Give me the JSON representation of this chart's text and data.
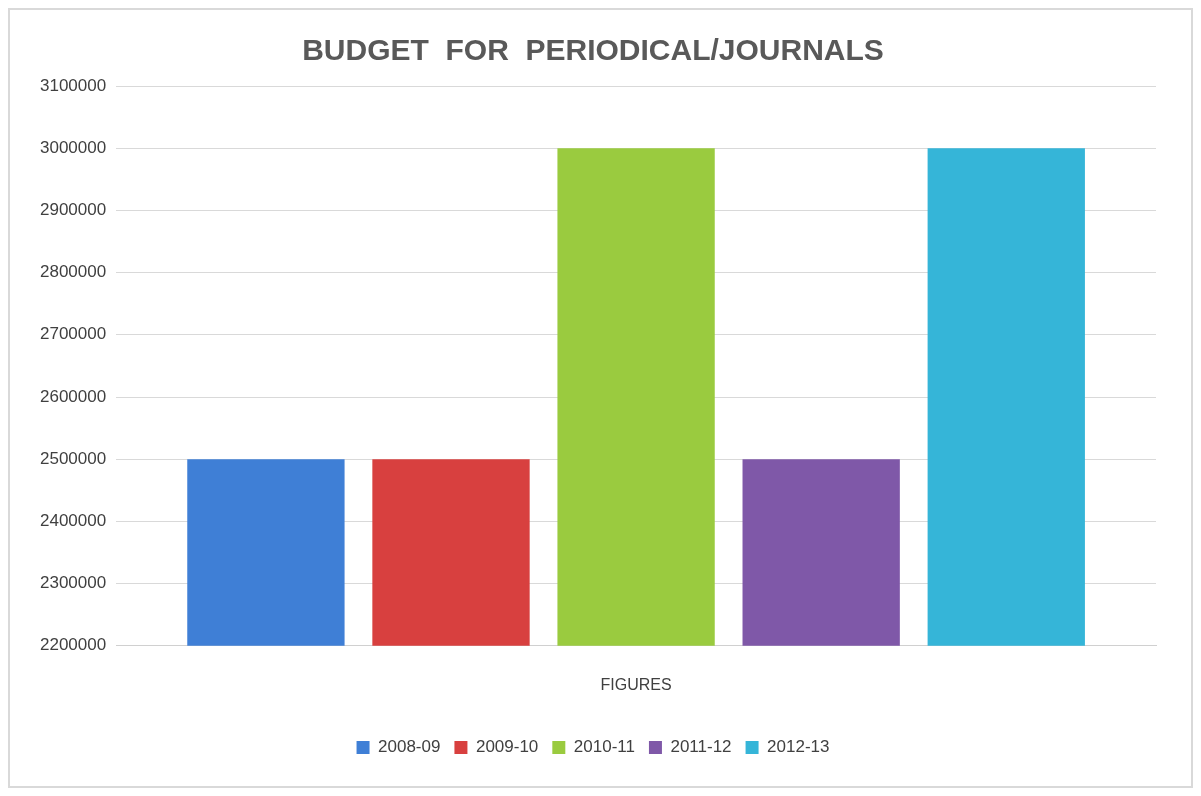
{
  "chart_data": {
    "type": "bar",
    "title": "BUDGET  FOR  PERIODICAL/JOURNALS",
    "categories": [
      "FIGURES"
    ],
    "series": [
      {
        "name": "2008-09",
        "color": "#3f7fd6",
        "values": [
          2500000
        ]
      },
      {
        "name": "2009-10",
        "color": "#d8403f",
        "values": [
          2500000
        ]
      },
      {
        "name": "2010-11",
        "color": "#9acb3f",
        "values": [
          3000000
        ]
      },
      {
        "name": "2011-12",
        "color": "#7f58a8",
        "values": [
          2500000
        ]
      },
      {
        "name": "2012-13",
        "color": "#35b5d8",
        "values": [
          3000000
        ]
      }
    ],
    "ylim": [
      2200000,
      3100000
    ],
    "yticks": [
      2200000,
      2300000,
      2400000,
      2500000,
      2600000,
      2700000,
      2800000,
      2900000,
      3000000,
      3100000
    ],
    "grid": "y",
    "legend": "bottom"
  }
}
